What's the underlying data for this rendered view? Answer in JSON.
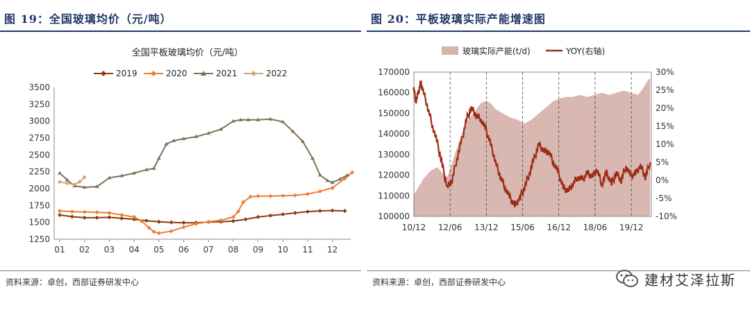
{
  "left": {
    "figure_title": "图 19：全国玻璃均价（元/吨）",
    "source": "资料来源：卓创，西部证券研发中心"
  },
  "right": {
    "figure_title": "图 20：平板玻璃实际产能增速图",
    "source": "资料来源：卓创，西部证券研发中心"
  },
  "watermark": {
    "text": "建材艾泽拉斯",
    "icon": "wechat-icon"
  },
  "chart_data": [
    {
      "type": "line",
      "title": "全国平板玻璃均价（元/吨）",
      "x_ticks": [
        "01",
        "02",
        "03",
        "04",
        "05",
        "06",
        "07",
        "08",
        "09",
        "10",
        "11",
        "12"
      ],
      "ylim": [
        1250,
        3500
      ],
      "y_ticks": [
        1250,
        1500,
        1750,
        2000,
        2250,
        2500,
        2750,
        3000,
        3250,
        3500
      ],
      "grid": false,
      "legend_position": "top",
      "series": [
        {
          "name": "2019",
          "color": "#8b3a0f",
          "x": [
            1,
            1.5,
            2,
            2.5,
            3,
            3.5,
            4,
            4.5,
            5,
            5.5,
            6,
            6.5,
            7,
            7.5,
            8,
            8.5,
            9,
            9.5,
            10,
            10.5,
            11,
            11.5,
            12,
            12.5
          ],
          "values": [
            1610,
            1585,
            1570,
            1570,
            1575,
            1560,
            1545,
            1525,
            1510,
            1500,
            1495,
            1495,
            1505,
            1510,
            1520,
            1545,
            1580,
            1600,
            1620,
            1640,
            1660,
            1670,
            1675,
            1670
          ]
        },
        {
          "name": "2020",
          "color": "#ed7d31",
          "x": [
            1,
            1.5,
            2,
            2.5,
            3,
            3.5,
            4,
            4.3,
            4.6,
            4.8,
            5,
            5.5,
            6,
            6.5,
            7,
            7.5,
            8,
            8.2,
            8.4,
            8.7,
            9,
            9.5,
            10,
            10.5,
            11,
            11.5,
            12,
            12.5,
            12.8
          ],
          "values": [
            1670,
            1660,
            1655,
            1650,
            1640,
            1610,
            1580,
            1520,
            1420,
            1360,
            1340,
            1370,
            1430,
            1480,
            1510,
            1530,
            1580,
            1660,
            1800,
            1880,
            1890,
            1890,
            1895,
            1900,
            1920,
            1960,
            2010,
            2150,
            2240
          ]
        },
        {
          "name": "2021",
          "color": "#7f7059",
          "x": [
            1,
            1.3,
            1.6,
            2,
            2.5,
            3,
            3.5,
            4,
            4.5,
            4.8,
            5,
            5.3,
            5.6,
            6,
            6.5,
            7,
            7.5,
            8,
            8.3,
            8.6,
            9,
            9.5,
            10,
            10.4,
            10.8,
            11.2,
            11.5,
            11.8,
            12,
            12.3,
            12.6
          ],
          "values": [
            2230,
            2130,
            2040,
            2020,
            2030,
            2160,
            2190,
            2230,
            2280,
            2300,
            2450,
            2660,
            2710,
            2740,
            2770,
            2820,
            2880,
            3000,
            3020,
            3020,
            3020,
            3030,
            2990,
            2850,
            2700,
            2450,
            2200,
            2120,
            2090,
            2140,
            2200
          ]
        },
        {
          "name": "2022",
          "color": "#d4a373",
          "x": [
            1,
            1.3,
            1.6,
            1.8,
            2
          ],
          "values": [
            2100,
            2080,
            2060,
            2100,
            2170
          ]
        }
      ]
    },
    {
      "type": "bar+line",
      "legend_position": "top",
      "x_ticks": [
        "10/12",
        "12/06",
        "13/12",
        "15/06",
        "16/12",
        "18/06",
        "19/12"
      ],
      "y_left_ticks": [
        100000,
        110000,
        120000,
        130000,
        140000,
        150000,
        160000,
        170000
      ],
      "y_left_lim": [
        100000,
        170000
      ],
      "y_right_ticks": [
        "30%",
        "25%",
        "20%",
        "15%",
        "10%",
        "5%",
        "0%",
        "-5%",
        "-10%"
      ],
      "y_right_lim": [
        -10,
        30
      ],
      "series": [
        {
          "name": "玻璃实际产能(t/d)",
          "axis": "left",
          "kind": "area",
          "color": "#d6b3ac",
          "x": [
            2010.9,
            2011.0,
            2011.3,
            2011.6,
            2011.9,
            2012.1,
            2012.3,
            2012.5,
            2012.7,
            2012.9,
            2013.1,
            2013.3,
            2013.5,
            2013.7,
            2013.9,
            2014.1,
            2014.3,
            2014.6,
            2014.9,
            2015.2,
            2015.5,
            2015.8,
            2016.1,
            2016.4,
            2016.7,
            2016.9,
            2017.2,
            2017.5,
            2017.8,
            2018.1,
            2018.4,
            2018.7,
            2019.0,
            2019.3,
            2019.6,
            2019.9,
            2020.2,
            2020.4,
            2020.6,
            2020.7
          ],
          "values": [
            110000,
            112000,
            118000,
            122000,
            124000,
            121000,
            119000,
            126000,
            133000,
            140000,
            145000,
            149000,
            152000,
            155000,
            156000,
            155000,
            152000,
            150000,
            148000,
            147000,
            145000,
            147000,
            150000,
            153000,
            156000,
            157000,
            158000,
            158000,
            159000,
            158000,
            159000,
            160000,
            159000,
            160000,
            161000,
            160000,
            159000,
            162000,
            166000,
            167000
          ]
        },
        {
          "name": "YOY(右轴)",
          "axis": "right",
          "kind": "line",
          "color": "#9c2c12",
          "x": [
            2010.9,
            2011.0,
            2011.1,
            2011.2,
            2011.3,
            2011.5,
            2011.7,
            2011.9,
            2012.1,
            2012.3,
            2012.5,
            2012.7,
            2012.9,
            2013.1,
            2013.3,
            2013.5,
            2013.7,
            2013.9,
            2014.1,
            2014.3,
            2014.5,
            2014.7,
            2014.9,
            2015.1,
            2015.3,
            2015.5,
            2015.7,
            2015.9,
            2016.1,
            2016.3,
            2016.5,
            2016.7,
            2016.9,
            2017.1,
            2017.3,
            2017.5,
            2017.7,
            2017.9,
            2018.1,
            2018.3,
            2018.5,
            2018.7,
            2018.9,
            2019.1,
            2019.3,
            2019.5,
            2019.7,
            2019.9,
            2020.1,
            2020.3,
            2020.5,
            2020.7
          ],
          "values": [
            26,
            22,
            24,
            27,
            25,
            20,
            15,
            10,
            4,
            -2,
            0,
            6,
            11,
            17,
            20,
            18,
            17,
            14,
            10,
            5,
            1,
            -2,
            -5,
            -7,
            -5,
            -2,
            2,
            6,
            10,
            8,
            8,
            5,
            2,
            -2,
            -3,
            -1,
            1,
            0,
            2,
            1,
            3,
            -1,
            2,
            -1,
            2,
            0,
            4,
            1,
            2,
            4,
            1,
            5
          ]
        }
      ]
    }
  ]
}
